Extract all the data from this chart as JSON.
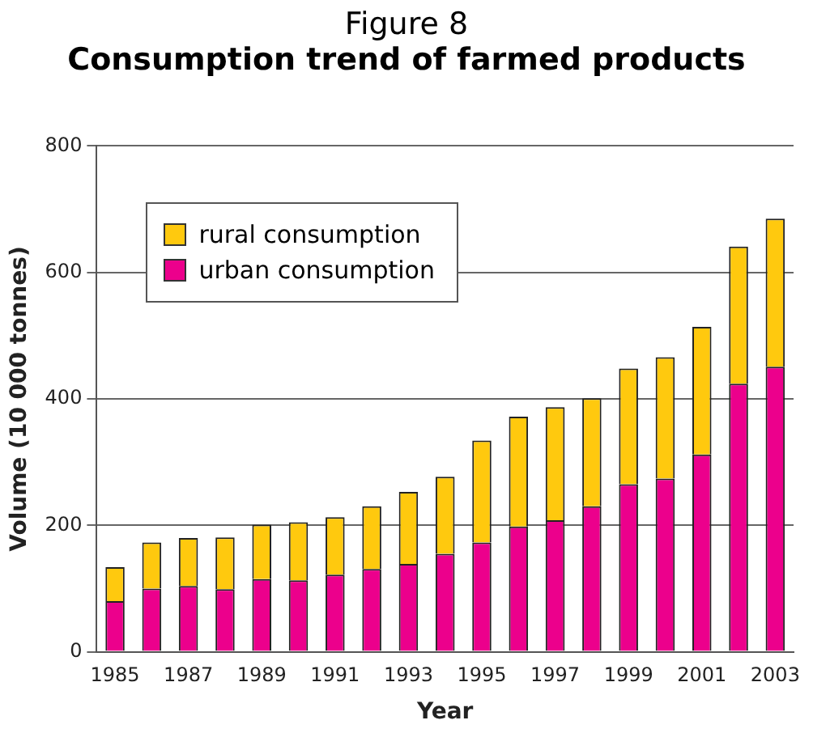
{
  "chart_data": {
    "type": "bar",
    "title": "Figure 8",
    "subtitle": "Consumption trend of farmed products",
    "xlabel": "Year",
    "ylabel": "Volume (10 000 tonnes)",
    "categories": [
      "1985",
      null,
      "1987",
      null,
      "1989",
      null,
      "1991",
      null,
      "1993",
      null,
      "1995",
      null,
      "1997",
      null,
      "1999",
      null,
      "2001",
      null,
      "2003"
    ],
    "stacked": true,
    "series": [
      {
        "name": "urban consumption",
        "color": "#ec008c",
        "values": [
          80,
          100,
          104,
          99,
          115,
          113,
          122,
          131,
          139,
          155,
          173,
          198,
          208,
          230,
          265,
          274,
          312,
          424,
          451
        ]
      },
      {
        "name": "rural consumption",
        "color": "#ffc90e",
        "values": [
          54,
          73,
          76,
          82,
          86,
          92,
          91,
          99,
          114,
          122,
          161,
          174,
          179,
          171,
          183,
          192,
          202,
          217,
          234
        ]
      }
    ],
    "ylim": [
      0,
      800
    ],
    "yticks": [
      0,
      200,
      400,
      600,
      800
    ],
    "grid": "y",
    "legend": "top left"
  }
}
